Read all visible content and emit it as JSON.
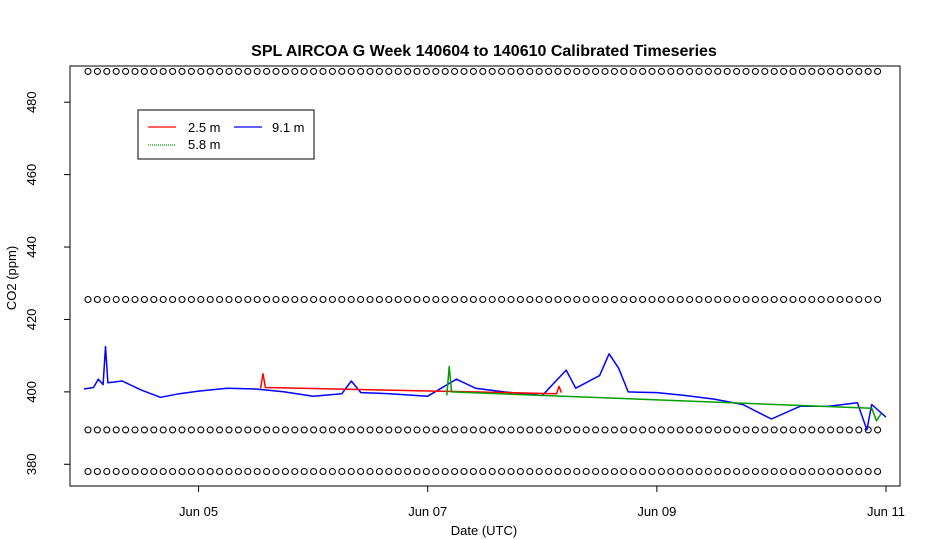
{
  "chart_data": {
    "type": "line",
    "title": "SPL AIRCOA G  Week 140604 to 140610  Calibrated Timeseries",
    "xlabel": "Date (UTC)",
    "ylabel": "CO2 (ppm)",
    "xlim": [
      "2014-06-04 00:00",
      "2014-06-11 00:00"
    ],
    "ylim": [
      374,
      490
    ],
    "x_ticks": [
      {
        "x": "2014-06-05",
        "label": "Jun 05"
      },
      {
        "x": "2014-06-07",
        "label": "Jun 07"
      },
      {
        "x": "2014-06-09",
        "label": "Jun 09"
      },
      {
        "x": "2014-06-11",
        "label": "Jun 11"
      }
    ],
    "y_ticks": [
      {
        "y": 380,
        "label": "380"
      },
      {
        "y": 400,
        "label": "400"
      },
      {
        "y": 420,
        "label": "420"
      },
      {
        "y": 440,
        "label": "440"
      },
      {
        "y": 460,
        "label": "460"
      },
      {
        "y": 480,
        "label": "480"
      }
    ],
    "legend": {
      "placement": "top-left",
      "entries": [
        {
          "label": "2.5 m",
          "color": "#ff0000"
        },
        {
          "label": "5.8 m",
          "color": "#00a000"
        },
        {
          "label": "9.1 m",
          "color": "#0000ff"
        }
      ]
    },
    "series": [
      {
        "name": "9.1 m",
        "color": "#0000ff",
        "points": [
          [
            "2014-06-04 00:00",
            400.8
          ],
          [
            "2014-06-04 02:00",
            401.2
          ],
          [
            "2014-06-04 03:00",
            403.5
          ],
          [
            "2014-06-04 04:00",
            402.0
          ],
          [
            "2014-06-04 04:30",
            412.5
          ],
          [
            "2014-06-04 05:00",
            402.5
          ],
          [
            "2014-06-04 08:00",
            403.0
          ],
          [
            "2014-06-04 12:00",
            400.5
          ],
          [
            "2014-06-04 16:00",
            398.5
          ],
          [
            "2014-06-04 20:00",
            399.5
          ],
          [
            "2014-06-05 00:00",
            400.2
          ],
          [
            "2014-06-05 06:00",
            401.0
          ],
          [
            "2014-06-05 12:00",
            400.8
          ],
          [
            "2014-06-05 18:00",
            400.0
          ],
          [
            "2014-06-06 00:00",
            398.8
          ],
          [
            "2014-06-06 06:00",
            399.5
          ],
          [
            "2014-06-06 08:00",
            403.0
          ],
          [
            "2014-06-06 10:00",
            399.8
          ],
          [
            "2014-06-06 16:00",
            399.5
          ],
          [
            "2014-06-07 00:00",
            398.8
          ],
          [
            "2014-06-07 06:00",
            403.5
          ],
          [
            "2014-06-07 10:00",
            401.0
          ],
          [
            "2014-06-07 16:00",
            400.0
          ],
          [
            "2014-06-08 00:00",
            399.0
          ],
          [
            "2014-06-08 05:00",
            406.0
          ],
          [
            "2014-06-08 07:00",
            401.0
          ],
          [
            "2014-06-08 12:00",
            404.5
          ],
          [
            "2014-06-08 14:00",
            410.5
          ],
          [
            "2014-06-08 16:00",
            406.5
          ],
          [
            "2014-06-08 18:00",
            400.0
          ],
          [
            "2014-06-09 00:00",
            399.8
          ],
          [
            "2014-06-09 06:00",
            399.0
          ],
          [
            "2014-06-09 12:00",
            398.0
          ],
          [
            "2014-06-09 18:00",
            396.5
          ],
          [
            "2014-06-10 00:00",
            392.5
          ],
          [
            "2014-06-10 06:00",
            396.0
          ],
          [
            "2014-06-10 12:00",
            396.0
          ],
          [
            "2014-06-10 18:00",
            397.0
          ],
          [
            "2014-06-10 20:00",
            389.5
          ],
          [
            "2014-06-10 21:00",
            396.5
          ],
          [
            "2014-06-11 00:00",
            393.0
          ]
        ]
      },
      {
        "name": "2.5 m",
        "color": "#ff0000",
        "points": [
          [
            "2014-06-05 13:00",
            401.0
          ],
          [
            "2014-06-05 13:30",
            405.0
          ],
          [
            "2014-06-05 14:00",
            401.2
          ],
          [
            "2014-06-08 03:00",
            399.5
          ],
          [
            "2014-06-08 03:30",
            401.5
          ],
          [
            "2014-06-08 04:00",
            399.8
          ]
        ]
      },
      {
        "name": "5.8 m",
        "color": "#00a000",
        "points": [
          [
            "2014-06-07 04:00",
            399.0
          ],
          [
            "2014-06-07 04:30",
            407.0
          ],
          [
            "2014-06-07 05:00",
            400.0
          ],
          [
            "2014-06-10 21:00",
            395.5
          ],
          [
            "2014-06-10 22:00",
            392.0
          ],
          [
            "2014-06-10 23:00",
            394.0
          ]
        ]
      }
    ],
    "reference_rows": [
      {
        "y": 488.5,
        "marker": "o"
      },
      {
        "y": 425.5,
        "marker": "o"
      },
      {
        "y": 389.5,
        "marker": "o"
      },
      {
        "y": 378.0,
        "marker": "o"
      }
    ]
  }
}
